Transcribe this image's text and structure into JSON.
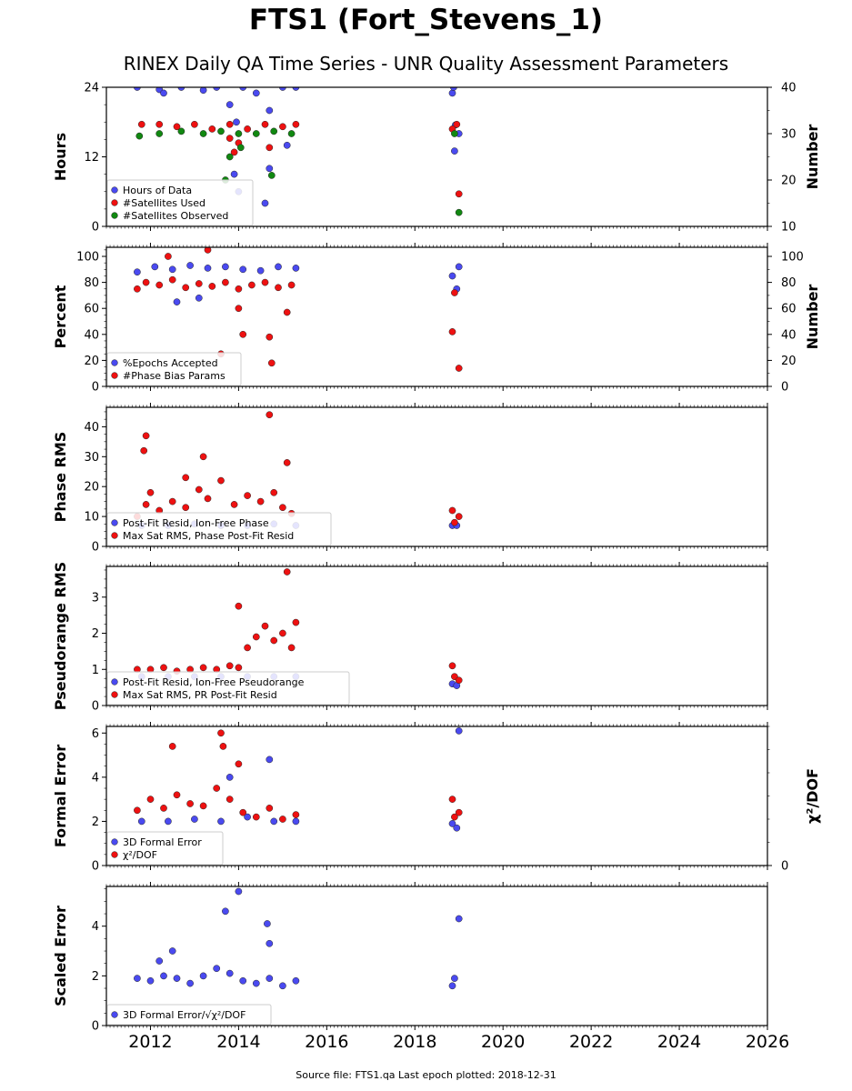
{
  "figure": {
    "title": "FTS1 (Fort_Stevens_1)",
    "subtitle": "RINEX Daily QA Time Series - UNR Quality Assessment Parameters",
    "footer": "Source file: FTS1.qa Last epoch plotted: 2018-12-31"
  },
  "colors": {
    "blue": "#4a4af0",
    "red": "#ee1111",
    "green": "#118811"
  },
  "chart_data": [
    {
      "type": "scatter",
      "ylabel": "Hours",
      "ylabel_right": "Number",
      "xlim": [
        2011.0,
        2026.0
      ],
      "ylim": [
        0,
        24
      ],
      "ylim_right": [
        10,
        40
      ],
      "yticks": [
        0,
        12,
        24
      ],
      "yticks_right": [
        10,
        20,
        30,
        40
      ],
      "legend": "lower-left",
      "series": [
        {
          "name": "Hours of Data",
          "color": "blue",
          "axis": "left",
          "x": [
            2011.7,
            2012.2,
            2012.7,
            2013.2,
            2013.5,
            2013.8,
            2014.1,
            2014.4,
            2014.7,
            2015.0,
            2015.3,
            2013.9,
            2014.0,
            2014.6,
            2014.7,
            2013.95,
            2012.3,
            2015.1,
            2018.85,
            2018.9,
            2019.0,
            2018.88,
            2018.92
          ],
          "y": [
            24,
            23.6,
            24,
            23.5,
            24,
            21,
            24,
            23,
            20,
            24,
            24,
            9,
            6,
            4,
            10,
            18,
            23,
            14,
            23,
            13,
            16,
            24,
            17.5
          ]
        },
        {
          "name": "#Satellites Used",
          "color": "red",
          "axis": "right",
          "x": [
            2011.8,
            2012.2,
            2012.6,
            2013.0,
            2013.4,
            2013.8,
            2014.2,
            2014.6,
            2015.0,
            2015.3,
            2013.8,
            2014.0,
            2014.7,
            2013.9,
            2018.85,
            2018.95,
            2019.0
          ],
          "y": [
            32,
            32,
            31.5,
            32,
            31,
            32,
            31,
            32,
            31.5,
            32,
            29,
            28,
            27,
            26,
            31,
            32,
            17
          ]
        },
        {
          "name": "#Satellites Observed",
          "color": "green",
          "axis": "right",
          "x": [
            2011.75,
            2012.2,
            2012.7,
            2013.2,
            2013.6,
            2014.0,
            2014.4,
            2014.8,
            2015.2,
            2013.7,
            2014.75,
            2014.05,
            2013.8,
            2018.9,
            2019.0
          ],
          "y": [
            29.5,
            30,
            30.5,
            30,
            30.5,
            30,
            30,
            30.5,
            30,
            20,
            21,
            27,
            25,
            30,
            13
          ]
        }
      ]
    },
    {
      "type": "scatter",
      "ylabel": "Percent",
      "ylabel_right": "Number",
      "xlim": [
        2011.0,
        2026.0
      ],
      "ylim": [
        0,
        107
      ],
      "ylim_right": [
        0,
        107
      ],
      "yticks": [
        0,
        20,
        40,
        60,
        80,
        100
      ],
      "yticks_right": [
        0,
        20,
        40,
        60,
        80,
        100
      ],
      "legend": "lower-left",
      "series": [
        {
          "name": "%Epochs Accepted",
          "color": "blue",
          "axis": "left",
          "x": [
            2011.7,
            2012.1,
            2012.5,
            2012.9,
            2013.3,
            2013.7,
            2014.1,
            2014.5,
            2014.9,
            2015.3,
            2012.6,
            2013.1,
            2018.85,
            2018.95,
            2019.0
          ],
          "y": [
            88,
            92,
            90,
            93,
            91,
            92,
            90,
            89,
            92,
            91,
            65,
            68,
            85,
            75,
            92
          ]
        },
        {
          "name": "#Phase Bias Params",
          "color": "red",
          "axis": "right",
          "x": [
            2011.7,
            2011.9,
            2012.2,
            2012.5,
            2012.8,
            2013.1,
            2013.4,
            2013.7,
            2014.0,
            2014.3,
            2014.6,
            2014.9,
            2015.2,
            2012.4,
            2013.3,
            2014.0,
            2014.1,
            2014.7,
            2014.75,
            2013.6,
            2015.1,
            2018.85,
            2018.9,
            2019.0
          ],
          "y": [
            75,
            80,
            78,
            82,
            76,
            79,
            77,
            80,
            75,
            78,
            80,
            76,
            78,
            100,
            105,
            60,
            40,
            38,
            18,
            25,
            57,
            42,
            72,
            14
          ]
        }
      ]
    },
    {
      "type": "scatter",
      "ylabel": "Phase RMS",
      "xlim": [
        2011.0,
        2026.0
      ],
      "ylim": [
        0,
        46.5
      ],
      "yticks": [
        0,
        10,
        20,
        30,
        40
      ],
      "legend": "lower-left",
      "series": [
        {
          "name": "Post-Fit Resid, Ion-Free Phase",
          "color": "blue",
          "x": [
            2011.8,
            2012.4,
            2013.0,
            2013.6,
            2014.2,
            2014.8,
            2015.3,
            2018.85,
            2018.95
          ],
          "y": [
            7,
            7,
            7.5,
            7,
            7,
            7.5,
            7,
            7,
            7
          ]
        },
        {
          "name": "Max Sat RMS, Phase Post-Fit Resid",
          "color": "red",
          "x": [
            2011.7,
            2011.9,
            2012.0,
            2012.2,
            2012.5,
            2012.8,
            2013.1,
            2013.3,
            2013.6,
            2013.9,
            2014.2,
            2014.5,
            2014.8,
            2015.0,
            2015.2,
            2011.85,
            2011.9,
            2014.7,
            2015.1,
            2013.2,
            2012.8,
            2018.85,
            2018.9,
            2019.0
          ],
          "y": [
            10,
            14,
            18,
            12,
            15,
            13,
            19,
            16,
            22,
            14,
            17,
            15,
            18,
            13,
            11,
            32,
            37,
            44,
            28,
            30,
            23,
            12,
            8,
            10
          ]
        }
      ]
    },
    {
      "type": "scatter",
      "ylabel": "Pseudorange RMS",
      "xlim": [
        2011.0,
        2026.0
      ],
      "ylim": [
        0,
        3.85
      ],
      "yticks": [
        0,
        1,
        2,
        3
      ],
      "legend": "lower-left",
      "series": [
        {
          "name": "Post-Fit Resid, Ion-Free Pseudorange",
          "color": "blue",
          "x": [
            2011.8,
            2012.4,
            2013.0,
            2013.6,
            2014.2,
            2014.8,
            2015.3,
            2018.85,
            2018.95
          ],
          "y": [
            0.8,
            0.8,
            0.8,
            0.8,
            0.8,
            0.8,
            0.8,
            0.6,
            0.55
          ]
        },
        {
          "name": "Max Sat RMS, PR Post-Fit Resid",
          "color": "red",
          "x": [
            2011.7,
            2012.0,
            2012.3,
            2012.6,
            2012.9,
            2013.2,
            2013.5,
            2013.8,
            2014.0,
            2014.2,
            2014.4,
            2014.6,
            2014.8,
            2015.0,
            2015.2,
            2015.3,
            2014.0,
            2015.1,
            2018.85,
            2018.9,
            2019.0
          ],
          "y": [
            1.0,
            1.0,
            1.05,
            0.95,
            1.0,
            1.05,
            1.0,
            1.1,
            1.05,
            1.6,
            1.9,
            2.2,
            1.8,
            2.0,
            1.6,
            2.3,
            2.75,
            3.7,
            1.1,
            0.8,
            0.7
          ]
        }
      ]
    },
    {
      "type": "scatter",
      "ylabel": "Formal Error",
      "ylabel_right": "χ²/DOF",
      "xlim": [
        2011.0,
        2026.0
      ],
      "ylim": [
        0,
        6.3
      ],
      "ylim_right": [
        0,
        6.3
      ],
      "yticks": [
        0,
        2,
        4,
        6
      ],
      "yticks_right": [
        0
      ],
      "legend": "lower-left",
      "series": [
        {
          "name": "3D Formal Error",
          "color": "blue",
          "axis": "left",
          "x": [
            2011.8,
            2012.4,
            2013.0,
            2013.6,
            2014.2,
            2014.8,
            2015.3,
            2014.7,
            2013.8,
            2018.85,
            2018.95,
            2019.0
          ],
          "y": [
            2.0,
            2.0,
            2.1,
            2.0,
            2.2,
            2.0,
            2.0,
            4.8,
            4.0,
            1.9,
            1.7,
            6.1
          ]
        },
        {
          "name": "χ²/DOF",
          "color": "red",
          "axis": "right",
          "x": [
            2011.7,
            2012.0,
            2012.3,
            2012.6,
            2012.9,
            2013.2,
            2013.5,
            2013.8,
            2014.1,
            2014.4,
            2014.7,
            2015.0,
            2015.3,
            2013.6,
            2013.65,
            2012.5,
            2014.0,
            2018.85,
            2018.9,
            2019.0
          ],
          "y": [
            2.5,
            3.0,
            2.6,
            3.2,
            2.8,
            2.7,
            3.5,
            3.0,
            2.4,
            2.2,
            2.6,
            2.1,
            2.3,
            6.0,
            5.4,
            5.4,
            4.6,
            3.0,
            2.2,
            2.4
          ]
        }
      ]
    },
    {
      "type": "scatter",
      "ylabel": "Scaled Error",
      "xlim": [
        2011.0,
        2026.0
      ],
      "ylim": [
        0,
        5.6
      ],
      "yticks": [
        0,
        2,
        4
      ],
      "xticks": [
        2012,
        2014,
        2016,
        2018,
        2020,
        2022,
        2024,
        2026
      ],
      "legend": "lower-left",
      "series": [
        {
          "name": "3D Formal Error/√χ²/DOF",
          "color": "blue",
          "x": [
            2011.7,
            2012.0,
            2012.3,
            2012.6,
            2012.9,
            2013.2,
            2013.5,
            2013.8,
            2014.1,
            2014.4,
            2014.7,
            2015.0,
            2015.3,
            2014.0,
            2013.7,
            2014.65,
            2014.7,
            2012.5,
            2012.2,
            2018.85,
            2018.9,
            2019.0
          ],
          "y": [
            1.9,
            1.8,
            2.0,
            1.9,
            1.7,
            2.0,
            2.3,
            2.1,
            1.8,
            1.7,
            1.9,
            1.6,
            1.8,
            5.4,
            4.6,
            4.1,
            3.3,
            3.0,
            2.6,
            1.6,
            1.9,
            4.3
          ]
        }
      ]
    }
  ]
}
